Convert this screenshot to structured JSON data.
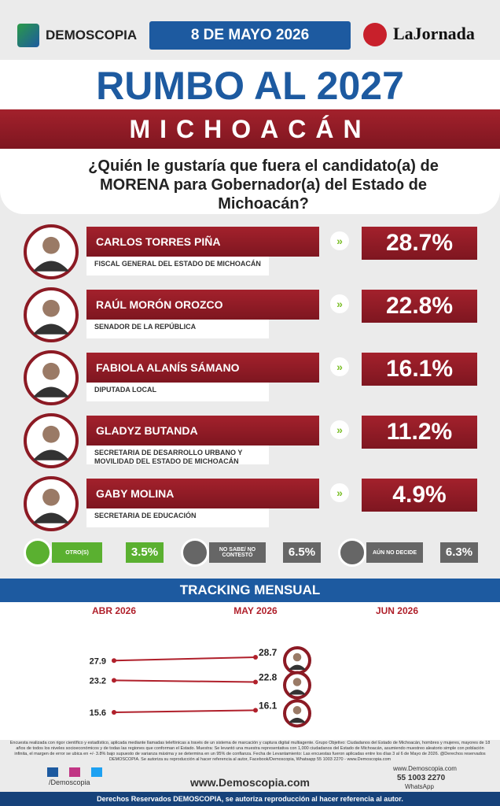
{
  "header": {
    "brand": "DEMOSCOPIA",
    "date": "8 DE MAYO 2026",
    "partner": "LaJornada"
  },
  "title": "RUMBO AL 2027",
  "state": "MICHOACÁN",
  "question": "¿Quién le gustaría que fuera el candidato(a) de MORENA para Gobernador(a) del Estado de Michoacán?",
  "candidates": [
    {
      "name": "CARLOS TORRES PIÑA",
      "role": "FISCAL GENERAL DEL ESTADO DE MICHOACÁN",
      "value": "28.7%"
    },
    {
      "name": "RAÚL MORÓN OROZCO",
      "role": "SENADOR DE LA REPÚBLICA",
      "value": "22.8%"
    },
    {
      "name": "FABIOLA ALANÍS SÁMANO",
      "role": "DIPUTADA LOCAL",
      "value": "16.1%"
    },
    {
      "name": "GLADYZ BUTANDA",
      "role": "SECRETARIA DE DESARROLLO URBANO Y MOVILIDAD DEL ESTADO DE MICHOACÁN",
      "value": "11.2%"
    },
    {
      "name": "GABY MOLINA",
      "role": "SECRETARIA DE EDUCACIÓN",
      "value": "4.9%"
    }
  ],
  "others": [
    {
      "label": "OTRO(S)",
      "value": "3.5%"
    },
    {
      "label": "NO SABE/ NO CONTESTÓ",
      "value": "6.5%"
    },
    {
      "label": "AÚN NO DECIDE",
      "value": "6.3%"
    }
  ],
  "tracking": {
    "title": "TRACKING MENSUAL",
    "months": [
      "ABR 2026",
      "MAY 2026",
      "JUN 2026"
    ],
    "rows": [
      {
        "start": 27.9,
        "end": 28.7
      },
      {
        "start": 23.2,
        "end": 22.8
      },
      {
        "start": 15.6,
        "end": 16.1
      }
    ]
  },
  "disclaimer": "Encuesta realizada con rigor científico y estadístico, aplicada mediante llamadas telefónicas a través de un sistema de marcación y captura digital multiagente. Grupo Objetivo: Ciudadanos del Estado de Michoacán, hombres y mujeres, mayores de 18 años de todos los niveles socioeconómicos y de todas las regiones que conforman el Estado. Muestra: Se levantó una muestra representativa con 1,000 ciudadanos del Estado de Michoacán, asumiendo muestreo aleatorio simple con población infinita, el margen de error se ubica en +/- 3.8% bajo supuesto de varianza máxima y se determina en un 95% de confianza. Fecha de Levantamiento: Las encuestas fueron aplicadas entre los días 3 al 6 de Mayo de 2026. @Derechos reservados DEMOSCOPIA. Se autoriza su reproducción al hacer referencia al autor, Facebook/Demoscopia, Whatsapp 55 1003 2270 - www.Demoscopia.com",
  "footer": {
    "social": "/Demoscopia",
    "website": "www.Demoscopia.com",
    "website_small": "www.Demoscopia.com",
    "phone": "55 1003 2270",
    "whatsapp": "WhatsApp",
    "rights": "Derechos Reservados DEMOSCOPIA, se autoriza reproducción al hacer referencia al autor."
  }
}
